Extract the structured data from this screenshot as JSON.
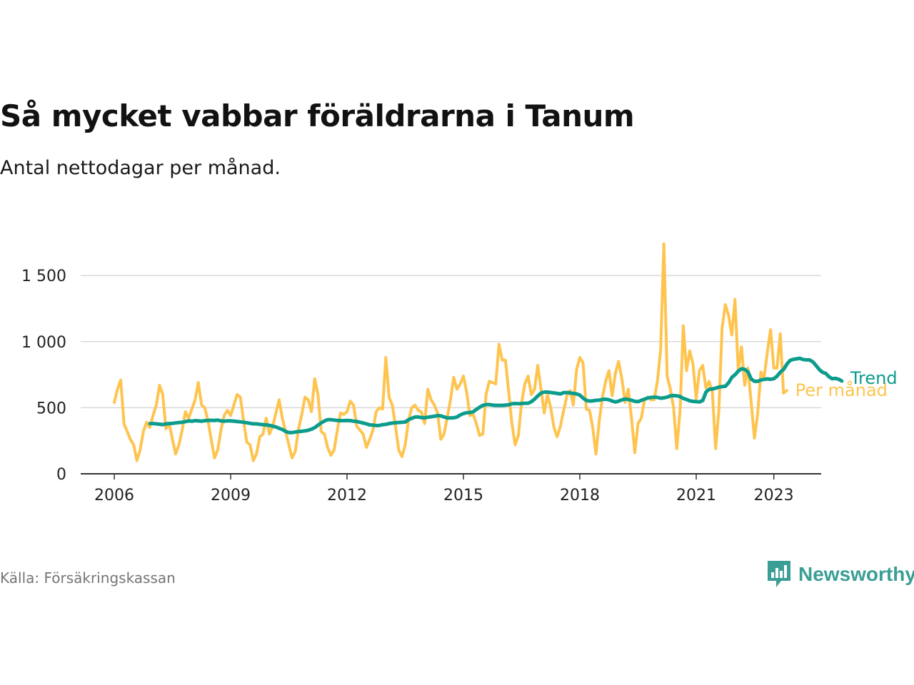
{
  "title": "Så mycket vabbar föräldrarna i Tanum",
  "subtitle": "Antal nettodagar per månad.",
  "source": "Källa: Försäkringskassan",
  "brand": {
    "name": "Newsworthy",
    "icon": "newsworthy-logo-icon",
    "color": "#3a9e95"
  },
  "chart_data": {
    "type": "line",
    "title": "Så mycket vabbar föräldrarna i Tanum",
    "xlabel": "",
    "ylabel": "",
    "ylim": [
      0,
      1750
    ],
    "xlim": [
      2006,
      2024.1
    ],
    "yticks": [
      0,
      500,
      1000,
      1500
    ],
    "ytick_labels": [
      "0",
      "500",
      "1 000",
      "1 500"
    ],
    "xticks": [
      2006,
      2009,
      2012,
      2015,
      2018,
      2021,
      2023
    ],
    "xtick_labels": [
      "2006",
      "2009",
      "2012",
      "2015",
      "2018",
      "2021",
      "2023"
    ],
    "grid": true,
    "legend": "inline-right",
    "series": [
      {
        "name": "Per månad",
        "color": "#fec44f",
        "x_start": 2006,
        "step": "month",
        "values": [
          540,
          640,
          710,
          380,
          320,
          260,
          220,
          100,
          180,
          320,
          390,
          350,
          440,
          520,
          670,
          600,
          340,
          380,
          260,
          150,
          220,
          330,
          470,
          420,
          490,
          560,
          690,
          520,
          500,
          400,
          260,
          120,
          180,
          330,
          440,
          480,
          440,
          520,
          600,
          580,
          400,
          240,
          220,
          100,
          150,
          280,
          300,
          420,
          300,
          360,
          460,
          560,
          420,
          320,
          220,
          120,
          170,
          340,
          450,
          580,
          560,
          470,
          720,
          600,
          320,
          300,
          200,
          140,
          180,
          330,
          460,
          450,
          470,
          550,
          520,
          360,
          330,
          300,
          200,
          260,
          330,
          470,
          500,
          490,
          880,
          580,
          520,
          360,
          180,
          130,
          220,
          400,
          500,
          520,
          480,
          470,
          380,
          640,
          560,
          520,
          460,
          260,
          300,
          430,
          560,
          730,
          640,
          680,
          740,
          620,
          440,
          450,
          380,
          290,
          300,
          600,
          700,
          690,
          680,
          980,
          860,
          860,
          620,
          380,
          220,
          290,
          540,
          680,
          740,
          600,
          640,
          820,
          640,
          460,
          600,
          500,
          350,
          280,
          360,
          480,
          590,
          630,
          520,
          790,
          880,
          840,
          490,
          480,
          350,
          150,
          400,
          580,
          700,
          780,
          590,
          760,
          850,
          720,
          540,
          640,
          420,
          160,
          380,
          420,
          560,
          580,
          560,
          560,
          700,
          940,
          1740,
          740,
          640,
          500,
          190,
          480,
          1120,
          780,
          930,
          830,
          570,
          780,
          820,
          650,
          700,
          620,
          190,
          480,
          1100,
          1280,
          1200,
          1050,
          1320,
          780,
          960,
          670,
          800,
          540,
          270,
          450,
          770,
          730,
          920,
          1090,
          800,
          800,
          1060,
          610,
          630
        ]
      },
      {
        "name": "Trend",
        "color": "#0c9c8c",
        "x_start": 2006.92,
        "step": "month",
        "values": [
          380,
          380,
          378,
          375,
          372,
          378,
          380,
          382,
          385,
          388,
          390,
          395,
          400,
          398,
          402,
          400,
          398,
          402,
          404,
          405,
          404,
          406,
          400,
          398,
          401,
          400,
          398,
          396,
          393,
          390,
          386,
          382,
          378,
          378,
          374,
          372,
          370,
          366,
          360,
          354,
          344,
          335,
          320,
          312,
          312,
          316,
          320,
          322,
          325,
          330,
          338,
          350,
          368,
          386,
          400,
          410,
          410,
          406,
          404,
          402,
          402,
          404,
          402,
          398,
          396,
          390,
          384,
          378,
          370,
          368,
          365,
          366,
          372,
          374,
          380,
          384,
          386,
          388,
          390,
          392,
          410,
          420,
          430,
          430,
          425,
          424,
          428,
          432,
          436,
          440,
          438,
          430,
          422,
          422,
          424,
          430,
          446,
          456,
          462,
          464,
          470,
          488,
          504,
          518,
          524,
          524,
          520,
          518,
          518,
          518,
          520,
          522,
          530,
          532,
          530,
          532,
          534,
          534,
          546,
          566,
          590,
          612,
          618,
          618,
          615,
          612,
          608,
          604,
          614,
          615,
          612,
          608,
          604,
          595,
          572,
          555,
          550,
          552,
          556,
          558,
          563,
          565,
          560,
          550,
          543,
          550,
          560,
          566,
          562,
          556,
          548,
          546,
          556,
          565,
          574,
          578,
          580,
          578,
          572,
          575,
          580,
          590,
          592,
          590,
          584,
          570,
          562,
          552,
          548,
          546,
          544,
          555,
          620,
          640,
          642,
          648,
          656,
          660,
          662,
          690,
          730,
          750,
          778,
          795,
          790,
          770,
          716,
          700,
          700,
          710,
          715,
          718,
          715,
          720,
          740,
          770,
          790,
          830,
          858,
          866,
          870,
          874,
          865,
          862,
          862,
          848,
          820,
          790,
          768,
          760,
          735,
          720,
          722,
          716,
          702
        ]
      }
    ]
  }
}
